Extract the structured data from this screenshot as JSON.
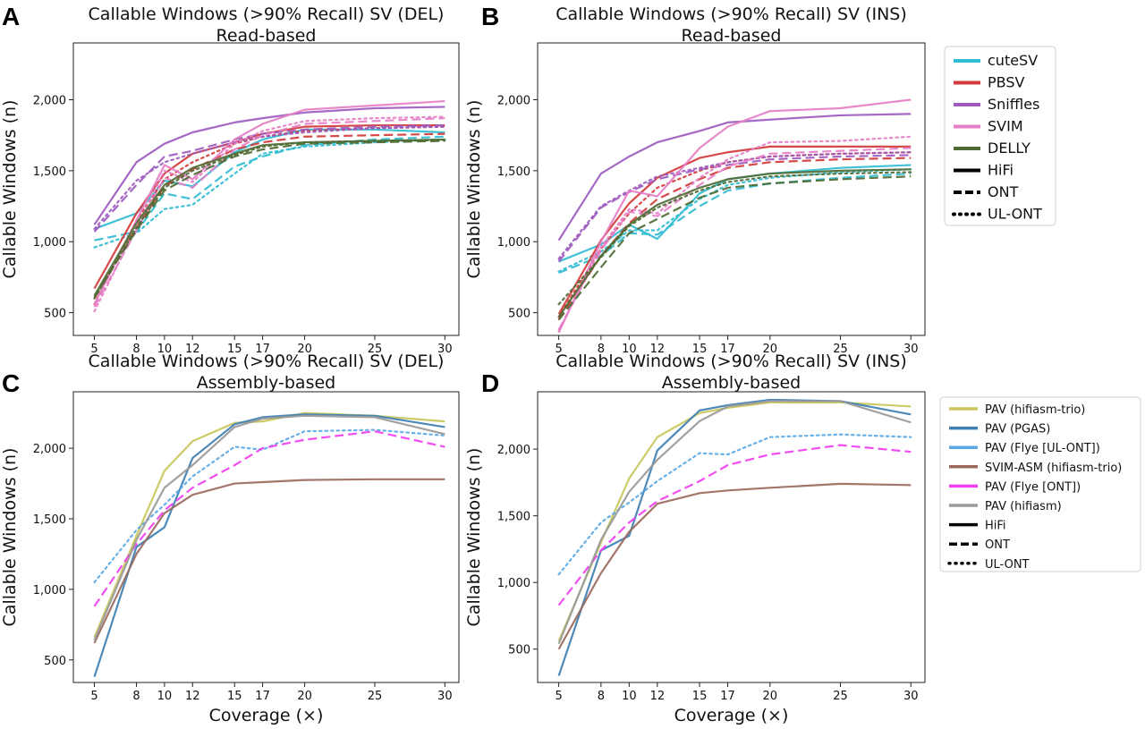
{
  "colors": {
    "cuteSV": "#31bcd3",
    "PBSV": "#d33a3a",
    "Sniffles": "#9d5bbf",
    "SVIM": "#e57fc6",
    "DELLY": "#4e6b33",
    "PAV_hifiasm_trio": "#c9c75a",
    "PAV_PGAS": "#3e80b4",
    "PAV_Flye_UL": "#5aa9e6",
    "SVIM_ASM": "#9a6a5e",
    "PAV_Flye_ONT": "#f03ef0",
    "PAV_hifiasm": "#999999"
  },
  "legends": {
    "read": [
      {
        "label": "cuteSV",
        "color": "#31bcd3",
        "dash": "solid"
      },
      {
        "label": "PBSV",
        "color": "#d33a3a",
        "dash": "solid"
      },
      {
        "label": "Sniffles",
        "color": "#9d5bbf",
        "dash": "solid"
      },
      {
        "label": "SVIM",
        "color": "#e57fc6",
        "dash": "solid"
      },
      {
        "label": "DELLY",
        "color": "#4e6b33",
        "dash": "solid"
      },
      {
        "label": "HiFi",
        "color": "#000000",
        "dash": "solid"
      },
      {
        "label": "ONT",
        "color": "#000000",
        "dash": "dashed"
      },
      {
        "label": "UL-ONT",
        "color": "#000000",
        "dash": "dotted"
      }
    ],
    "assembly": [
      {
        "label": "PAV (hifiasm-trio)",
        "color": "#c9c75a",
        "dash": "solid"
      },
      {
        "label": "PAV (PGAS)",
        "color": "#3e80b4",
        "dash": "solid"
      },
      {
        "label": "PAV (Flye [UL-ONT])",
        "color": "#5aa9e6",
        "dash": "solid"
      },
      {
        "label": "SVIM-ASM (hifiasm-trio)",
        "color": "#9a6a5e",
        "dash": "solid"
      },
      {
        "label": "PAV (Flye [ONT])",
        "color": "#f03ef0",
        "dash": "solid"
      },
      {
        "label": "PAV (hifiasm)",
        "color": "#999999",
        "dash": "solid"
      },
      {
        "label": "HiFi",
        "color": "#000000",
        "dash": "solid"
      },
      {
        "label": "ONT",
        "color": "#000000",
        "dash": "dashed"
      },
      {
        "label": "UL-ONT",
        "color": "#000000",
        "dash": "dotted"
      }
    ]
  },
  "chart_data": [
    {
      "panel": "A",
      "type": "line",
      "title": "Callable Windows (>90% Recall) SV (DEL)",
      "subtitle": "Read-based",
      "xlabel": "",
      "ylabel": "Callable Windows (n)",
      "x": [
        5,
        8,
        10,
        12,
        15,
        17,
        20,
        25,
        30
      ],
      "xlim": [
        3.5,
        31
      ],
      "ylim": [
        340,
        2400
      ],
      "yticks": [
        500,
        1000,
        1500,
        2000
      ],
      "ytick_labels": [
        "500",
        "1,000",
        "1,500",
        "2,000"
      ],
      "series": [
        {
          "color": "#31bcd3",
          "dash": "solid",
          "values": [
            1090,
            1200,
            1430,
            1390,
            1630,
            1720,
            1790,
            1790,
            1770
          ]
        },
        {
          "color": "#31bcd3",
          "dash": "dashed",
          "values": [
            1010,
            1070,
            1340,
            1300,
            1530,
            1600,
            1680,
            1720,
            1740
          ]
        },
        {
          "color": "#31bcd3",
          "dash": "dotted",
          "values": [
            960,
            1060,
            1230,
            1260,
            1480,
            1620,
            1670,
            1700,
            1720
          ]
        },
        {
          "color": "#d33a3a",
          "dash": "solid",
          "values": [
            670,
            1200,
            1480,
            1620,
            1700,
            1760,
            1810,
            1820,
            1820
          ]
        },
        {
          "color": "#d33a3a",
          "dash": "dashed",
          "values": [
            600,
            1100,
            1390,
            1510,
            1650,
            1700,
            1740,
            1750,
            1760
          ]
        },
        {
          "color": "#d33a3a",
          "dash": "dotted",
          "values": [
            560,
            1150,
            1440,
            1560,
            1690,
            1740,
            1780,
            1800,
            1810
          ]
        },
        {
          "color": "#9d5bbf",
          "dash": "solid",
          "values": [
            1120,
            1560,
            1690,
            1770,
            1840,
            1870,
            1910,
            1940,
            1950
          ]
        },
        {
          "color": "#9d5bbf",
          "dash": "dashed",
          "values": [
            1070,
            1400,
            1600,
            1640,
            1720,
            1760,
            1790,
            1810,
            1820
          ]
        },
        {
          "color": "#9d5bbf",
          "dash": "dotted",
          "values": [
            1090,
            1430,
            1560,
            1620,
            1700,
            1740,
            1770,
            1800,
            1810
          ]
        },
        {
          "color": "#e57fc6",
          "dash": "solid",
          "values": [
            560,
            1150,
            1540,
            1440,
            1720,
            1830,
            1930,
            1960,
            1990
          ]
        },
        {
          "color": "#e57fc6",
          "dash": "dashed",
          "values": [
            540,
            1080,
            1450,
            1380,
            1650,
            1750,
            1830,
            1850,
            1870
          ]
        },
        {
          "color": "#e57fc6",
          "dash": "dotted",
          "values": [
            510,
            1100,
            1500,
            1420,
            1690,
            1780,
            1850,
            1870,
            1880
          ]
        },
        {
          "color": "#4e6b33",
          "dash": "solid",
          "values": [
            620,
            1130,
            1400,
            1520,
            1620,
            1680,
            1700,
            1710,
            1720
          ]
        },
        {
          "color": "#4e6b33",
          "dash": "dashed",
          "values": [
            610,
            1080,
            1360,
            1470,
            1600,
            1650,
            1690,
            1700,
            1710
          ]
        },
        {
          "color": "#4e6b33",
          "dash": "dotted",
          "values": [
            600,
            1100,
            1380,
            1500,
            1610,
            1670,
            1700,
            1710,
            1715
          ]
        }
      ]
    },
    {
      "panel": "B",
      "type": "line",
      "title": "Callable Windows (>90% Recall) SV (INS)",
      "subtitle": "Read-based",
      "xlabel": "",
      "ylabel": "Callable Windows (n)",
      "x": [
        5,
        8,
        10,
        12,
        15,
        17,
        20,
        25,
        30
      ],
      "xlim": [
        3.5,
        31
      ],
      "ylim": [
        340,
        2400
      ],
      "yticks": [
        500,
        1000,
        1500,
        2000
      ],
      "ytick_labels": [
        "500",
        "1,000",
        "1,500",
        "2,000"
      ],
      "series": [
        {
          "color": "#31bcd3",
          "dash": "solid",
          "values": [
            860,
            980,
            1120,
            1020,
            1340,
            1440,
            1480,
            1520,
            1540
          ]
        },
        {
          "color": "#31bcd3",
          "dash": "dashed",
          "values": [
            780,
            900,
            1060,
            1050,
            1250,
            1360,
            1410,
            1450,
            1480
          ]
        },
        {
          "color": "#31bcd3",
          "dash": "dotted",
          "values": [
            790,
            930,
            1080,
            1080,
            1300,
            1400,
            1450,
            1490,
            1510
          ]
        },
        {
          "color": "#d33a3a",
          "dash": "solid",
          "values": [
            490,
            1010,
            1270,
            1450,
            1590,
            1630,
            1670,
            1670,
            1670
          ]
        },
        {
          "color": "#d33a3a",
          "dash": "dashed",
          "values": [
            450,
            900,
            1130,
            1300,
            1440,
            1520,
            1560,
            1580,
            1590
          ]
        },
        {
          "color": "#d33a3a",
          "dash": "dotted",
          "values": [
            470,
            950,
            1200,
            1380,
            1500,
            1560,
            1600,
            1620,
            1630
          ]
        },
        {
          "color": "#9d5bbf",
          "dash": "solid",
          "values": [
            1010,
            1480,
            1600,
            1700,
            1780,
            1840,
            1860,
            1890,
            1900
          ]
        },
        {
          "color": "#9d5bbf",
          "dash": "dashed",
          "values": [
            860,
            1240,
            1350,
            1440,
            1510,
            1540,
            1580,
            1600,
            1610
          ]
        },
        {
          "color": "#9d5bbf",
          "dash": "dotted",
          "values": [
            880,
            1250,
            1360,
            1460,
            1520,
            1560,
            1600,
            1620,
            1630
          ]
        },
        {
          "color": "#e57fc6",
          "dash": "solid",
          "values": [
            360,
            1000,
            1360,
            1320,
            1660,
            1810,
            1920,
            1940,
            2000
          ]
        },
        {
          "color": "#e57fc6",
          "dash": "dashed",
          "values": [
            380,
            940,
            1210,
            1180,
            1400,
            1530,
            1620,
            1640,
            1660
          ]
        },
        {
          "color": "#e57fc6",
          "dash": "dotted",
          "values": [
            370,
            960,
            1230,
            1200,
            1450,
            1580,
            1700,
            1710,
            1740
          ]
        },
        {
          "color": "#4e6b33",
          "dash": "solid",
          "values": [
            470,
            900,
            1120,
            1260,
            1380,
            1440,
            1480,
            1500,
            1510
          ]
        },
        {
          "color": "#4e6b33",
          "dash": "dashed",
          "values": [
            450,
            820,
            1060,
            1160,
            1310,
            1380,
            1410,
            1440,
            1460
          ]
        },
        {
          "color": "#4e6b33",
          "dash": "dotted",
          "values": [
            560,
            890,
            1110,
            1240,
            1360,
            1420,
            1460,
            1480,
            1490
          ]
        }
      ]
    },
    {
      "panel": "C",
      "type": "line",
      "title": "Callable Windows (>90% Recall) SV (DEL)",
      "subtitle": "Assembly-based",
      "xlabel": "Coverage (×)",
      "ylabel": "Callable Windows (n)",
      "x": [
        5,
        8,
        10,
        12,
        15,
        17,
        20,
        25,
        30
      ],
      "xlim": [
        3.5,
        31
      ],
      "ylim": [
        340,
        2400
      ],
      "yticks": [
        500,
        1000,
        1500,
        2000
      ],
      "ytick_labels": [
        "500",
        "1,000",
        "1,500",
        "2,000"
      ],
      "series": [
        {
          "color": "#c9c75a",
          "dash": "solid",
          "values": [
            660,
            1380,
            1840,
            2050,
            2180,
            2190,
            2250,
            2230,
            2190
          ]
        },
        {
          "color": "#3e80b4",
          "dash": "solid",
          "values": [
            380,
            1300,
            1440,
            1930,
            2170,
            2220,
            2240,
            2230,
            2150
          ]
        },
        {
          "color": "#5aa9e6",
          "dash": "dotted",
          "values": [
            1050,
            1420,
            1600,
            1800,
            2010,
            1990,
            2120,
            2130,
            2090
          ]
        },
        {
          "color": "#9a6a5e",
          "dash": "solid",
          "values": [
            620,
            1250,
            1540,
            1670,
            1750,
            1760,
            1775,
            1780,
            1780
          ]
        },
        {
          "color": "#f03ef0",
          "dash": "dashed",
          "values": [
            880,
            1320,
            1560,
            1720,
            1880,
            2000,
            2060,
            2120,
            2010
          ]
        },
        {
          "color": "#999999",
          "dash": "solid",
          "values": [
            640,
            1350,
            1720,
            1880,
            2150,
            2210,
            2230,
            2220,
            2100
          ]
        }
      ]
    },
    {
      "panel": "D",
      "type": "line",
      "title": "Callable Windows (>90% Recall) SV (INS)",
      "subtitle": "Assembly-based",
      "xlabel": "Coverage (×)",
      "ylabel": "Callable Windows (n)",
      "x": [
        5,
        8,
        10,
        12,
        15,
        17,
        20,
        25,
        30
      ],
      "xlim": [
        3.5,
        31
      ],
      "ylim": [
        250,
        2430
      ],
      "yticks": [
        500,
        1000,
        1500,
        2000
      ],
      "ytick_labels": [
        "500",
        "1,000",
        "1,500",
        "2,000"
      ],
      "series": [
        {
          "color": "#c9c75a",
          "dash": "solid",
          "values": [
            560,
            1300,
            1780,
            2090,
            2270,
            2310,
            2350,
            2350,
            2320
          ]
        },
        {
          "color": "#3e80b4",
          "dash": "solid",
          "values": [
            300,
            1240,
            1350,
            1990,
            2290,
            2330,
            2370,
            2360,
            2260
          ]
        },
        {
          "color": "#5aa9e6",
          "dash": "dotted",
          "values": [
            1060,
            1450,
            1600,
            1760,
            1970,
            1960,
            2090,
            2110,
            2090
          ]
        },
        {
          "color": "#9a6a5e",
          "dash": "solid",
          "values": [
            500,
            1070,
            1380,
            1590,
            1670,
            1690,
            1710,
            1740,
            1730
          ]
        },
        {
          "color": "#f03ef0",
          "dash": "dashed",
          "values": [
            830,
            1240,
            1450,
            1610,
            1760,
            1880,
            1960,
            2030,
            1980
          ]
        },
        {
          "color": "#999999",
          "dash": "solid",
          "values": [
            540,
            1320,
            1680,
            1920,
            2210,
            2320,
            2360,
            2360,
            2200
          ]
        }
      ]
    }
  ]
}
